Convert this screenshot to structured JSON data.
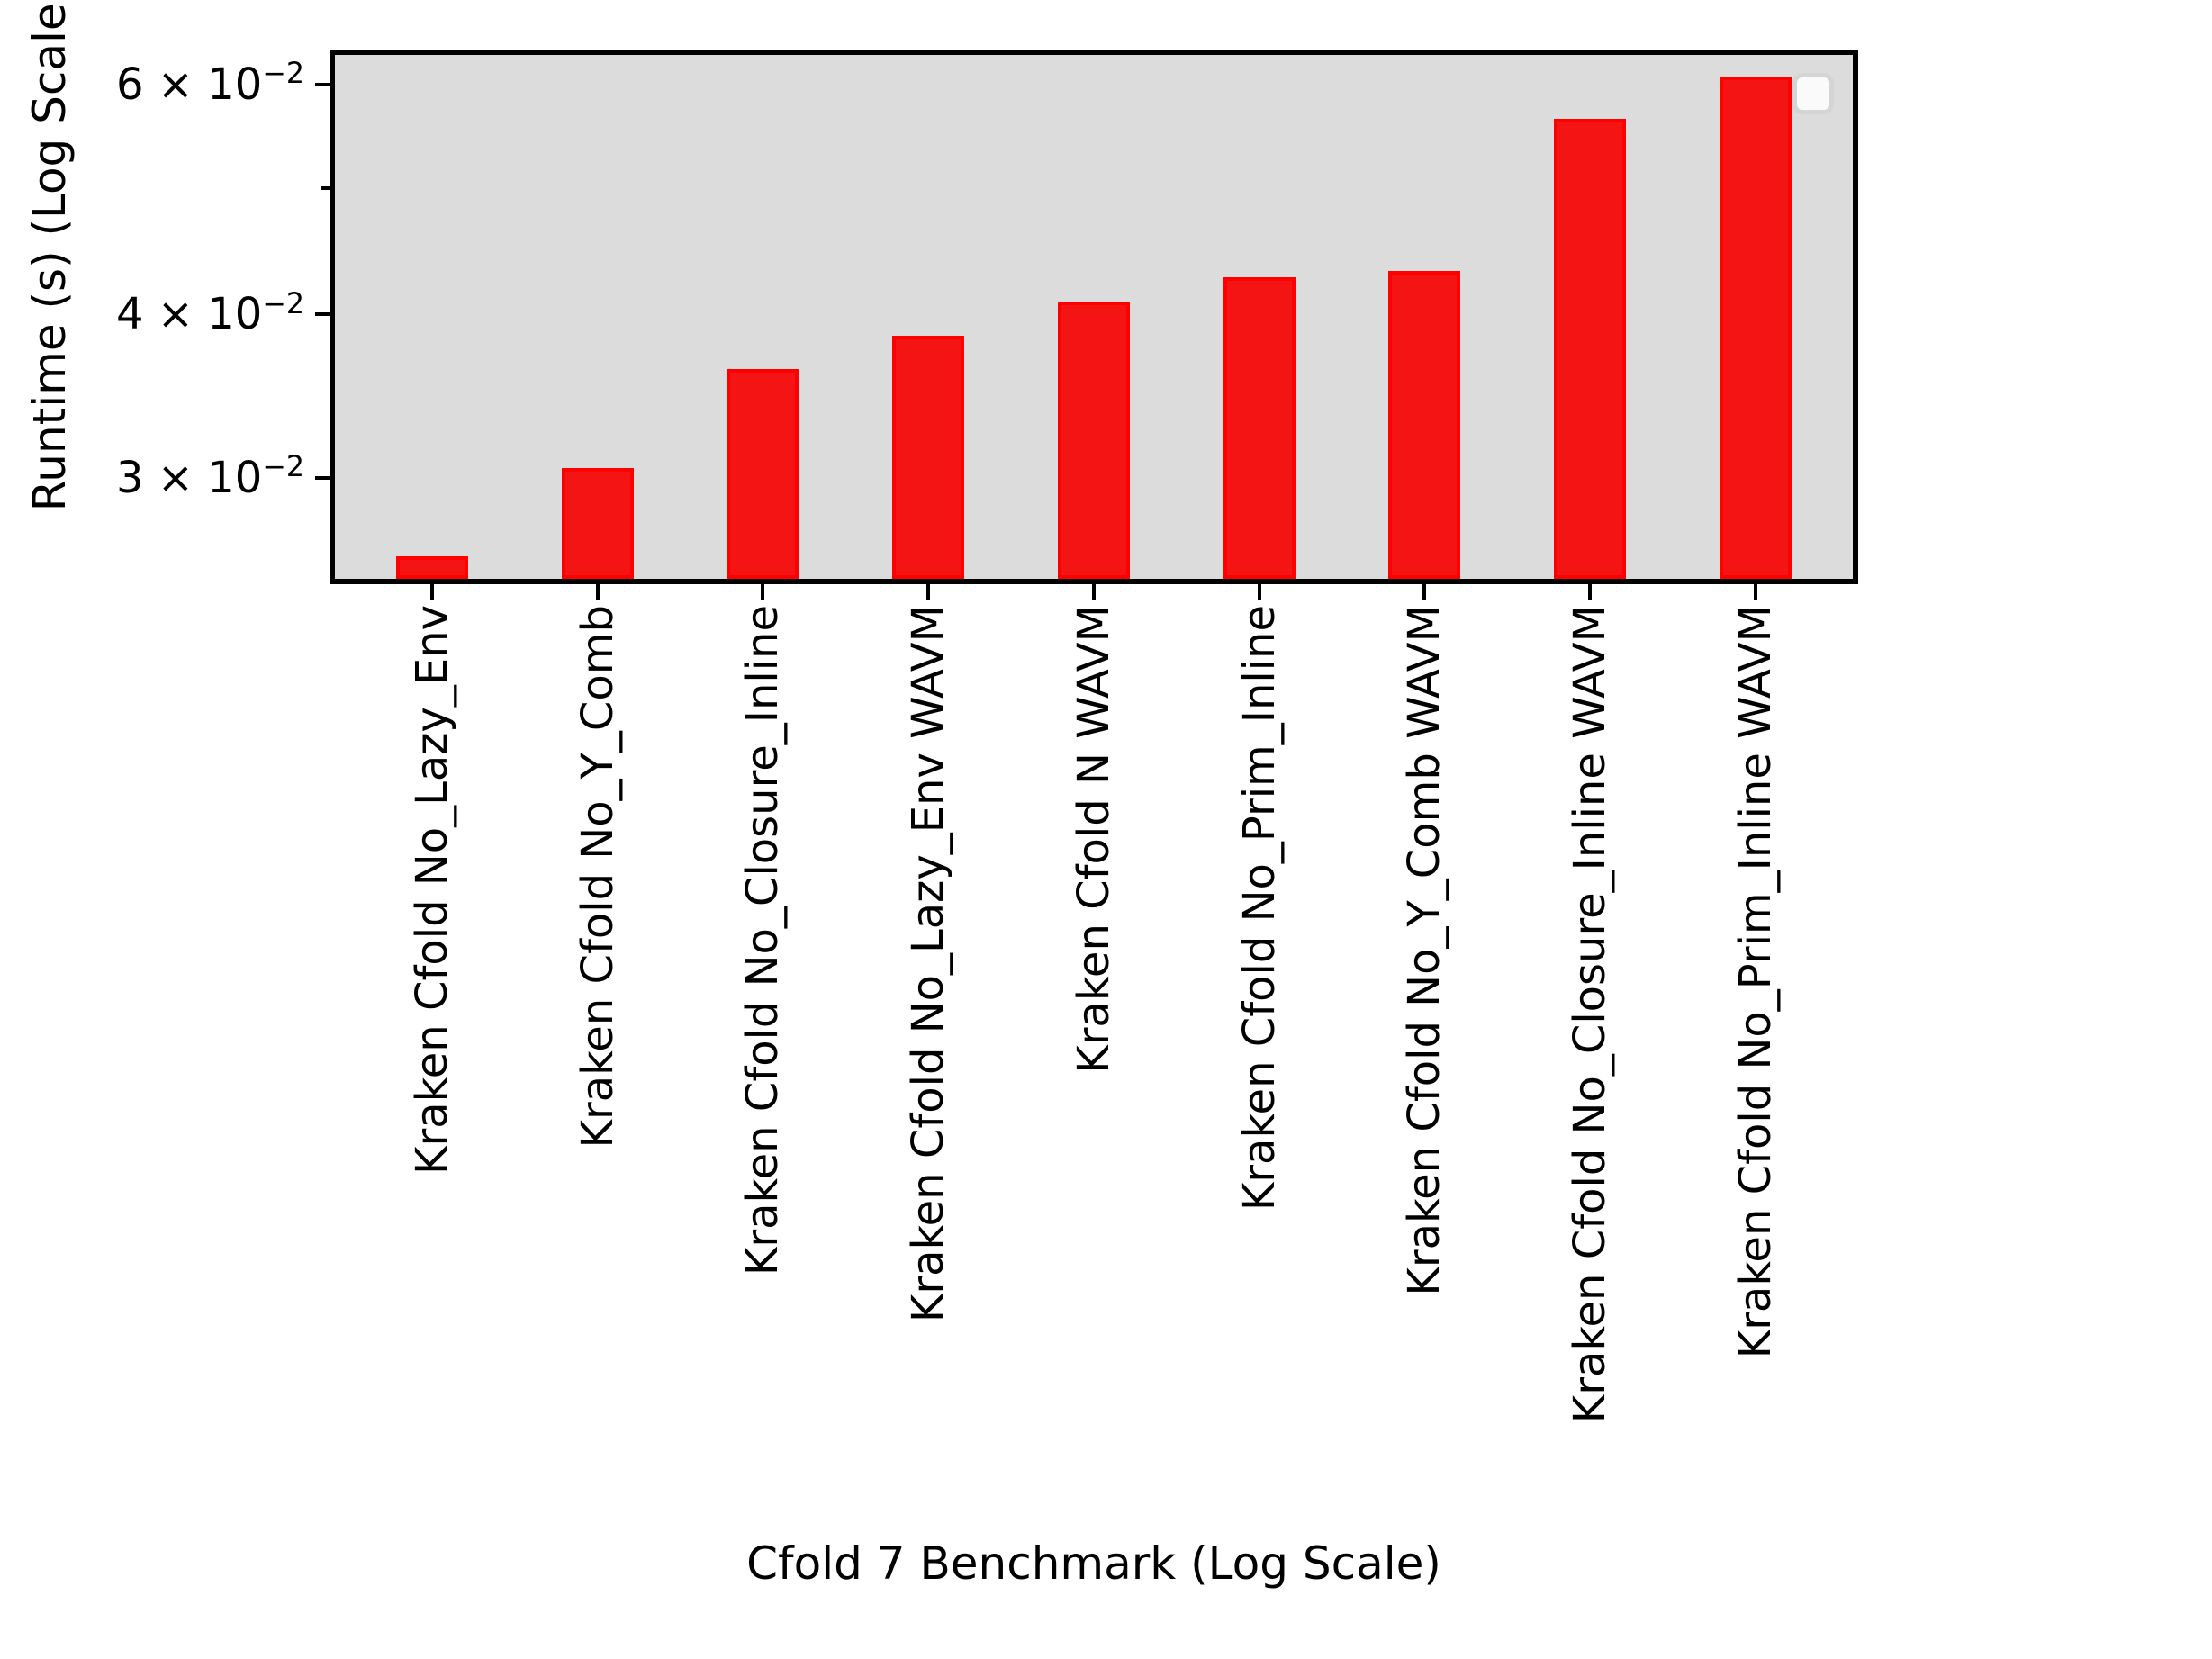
{
  "figure": {
    "background": "#ffffff",
    "plot_background": "#dcdcdc",
    "spine_color": "#000000"
  },
  "chart_data": {
    "type": "bar",
    "title": "",
    "xlabel": "Cfold 7 Benchmark (Log Scale)",
    "ylabel": "Runtime (s) (Log Scale)",
    "yscale": "log",
    "ylim": [
      0.0251,
      0.0632
    ],
    "grid": false,
    "legend_position": "upper right",
    "legend_entries": [],
    "bar_color": "#f51414",
    "bar_edge_color": "#ff0000",
    "categories": [
      "Kraken Cfold No_Lazy_Env",
      "Kraken Cfold No_Y_Comb",
      "Kraken Cfold No_Closure_Inline",
      "Kraken Cfold No_Lazy_Env WAVM",
      "Kraken Cfold N WAVM",
      "Kraken Cfold No_Prim_Inline",
      "Kraken Cfold No_Y_Comb WAVM",
      "Kraken Cfold No_Closure_Inline WAVM",
      "Kraken Cfold No_Prim_Inline WAVM"
    ],
    "values": [
      0.0261,
      0.0305,
      0.0363,
      0.0385,
      0.0409,
      0.0427,
      0.0432,
      0.0565,
      0.0608
    ],
    "yticks": [
      {
        "value": 0.06,
        "label": "6 × 10⁻²",
        "minor": false
      },
      {
        "value": 0.05,
        "label": "",
        "minor": true
      },
      {
        "value": 0.04,
        "label": "4 × 10⁻²",
        "minor": false
      },
      {
        "value": 0.03,
        "label": "3 × 10⁻²",
        "minor": false
      }
    ]
  }
}
